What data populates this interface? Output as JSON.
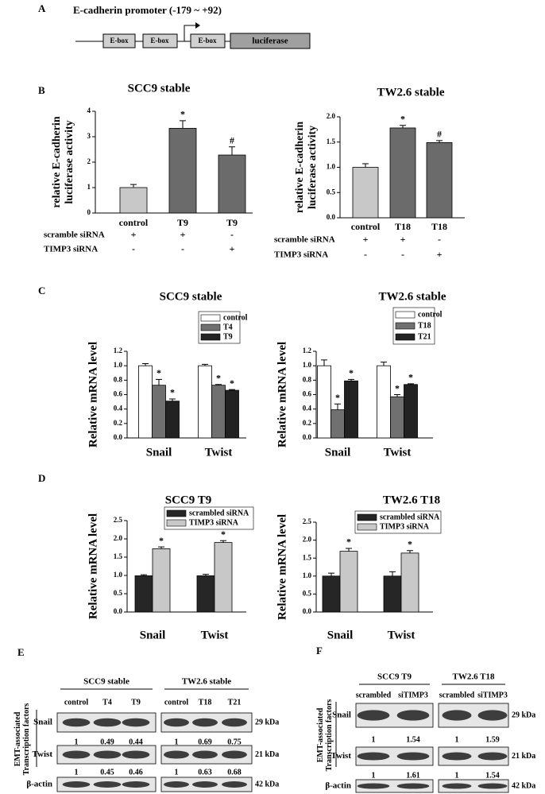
{
  "panel_labels": [
    "A",
    "B",
    "C",
    "D",
    "E",
    "F"
  ],
  "diagram": {
    "title": "E-cadherin promoter (-179 ~ +92)",
    "boxes": [
      "E-box",
      "E-box",
      "E-box"
    ],
    "reporter": "luciferase"
  },
  "chart_data": [
    {
      "type": "bar",
      "title": "SCC9 stable",
      "y_label": [
        "relative E-cadherin",
        "luciferase activity"
      ],
      "categories": [
        "control",
        "T9",
        "T9"
      ],
      "values": [
        1.0,
        3.33,
        2.28
      ],
      "errors": [
        0.12,
        0.3,
        0.32
      ],
      "colors": [
        "#c8c8c8",
        "#6b6b6b",
        "#6b6b6b"
      ],
      "annotations": [
        null,
        "*",
        "#"
      ],
      "conditions": [
        {
          "name": "scramble siRNA",
          "values": [
            "+",
            "+",
            "-"
          ]
        },
        {
          "name": "TIMP3 siRNA",
          "values": [
            "-",
            "-",
            "+"
          ]
        }
      ],
      "ylim": [
        0,
        4
      ],
      "yticks": [
        0,
        1,
        2,
        3,
        4
      ]
    },
    {
      "type": "bar",
      "title": "TW2.6 stable",
      "y_label": [
        "relative E-cadherin",
        "luciferase activity"
      ],
      "categories": [
        "control",
        "T18",
        "T18"
      ],
      "values": [
        1.0,
        1.78,
        1.49
      ],
      "errors": [
        0.07,
        0.05,
        0.04
      ],
      "colors": [
        "#c8c8c8",
        "#6b6b6b",
        "#6b6b6b"
      ],
      "annotations": [
        null,
        "*",
        "#"
      ],
      "conditions": [
        {
          "name": "scramble siRNA",
          "values": [
            "+",
            "+",
            "-"
          ]
        },
        {
          "name": "TIMP3 siRNA",
          "values": [
            "-",
            "-",
            "+"
          ]
        }
      ],
      "ylim": [
        0,
        2
      ],
      "yticks": [
        {
          "value": 0,
          "label": "0.0"
        },
        0.5,
        {
          "value": 1,
          "label": "1.0"
        },
        1.5,
        {
          "value": 2,
          "label": "2.0"
        }
      ]
    },
    {
      "type": "bar",
      "title": "SCC9 stable",
      "y_label": "Relative mRNA level",
      "categories": [
        "Snail",
        "Twist"
      ],
      "legend": "upper right",
      "series": [
        {
          "name": "control",
          "color": "#ffffff",
          "values": [
            1.0,
            1.0
          ],
          "errors": [
            0.03,
            0.02
          ]
        },
        {
          "name": "T4",
          "color": "#707070",
          "values": [
            0.73,
            0.73
          ],
          "errors": [
            0.08,
            0.01
          ],
          "annotations": [
            "*",
            "*"
          ]
        },
        {
          "name": "T9",
          "color": "#222222",
          "values": [
            0.51,
            0.66
          ],
          "errors": [
            0.03,
            0.01
          ],
          "annotations": [
            "*",
            "*"
          ]
        }
      ],
      "ylim": [
        0,
        1.2
      ],
      "yticks": [
        {
          "value": 0,
          "label": "0.0"
        },
        0.2,
        0.4,
        0.6,
        0.8,
        {
          "value": 1,
          "label": "1.0"
        },
        1.2
      ]
    },
    {
      "type": "bar",
      "title": "TW2.6 stable",
      "y_label": "Relative mRNA level",
      "categories": [
        "Snail",
        "Twist"
      ],
      "legend": "upper right",
      "series": [
        {
          "name": "control",
          "color": "#ffffff",
          "values": [
            1.0,
            1.0
          ],
          "errors": [
            0.08,
            0.05
          ]
        },
        {
          "name": "T18",
          "color": "#707070",
          "values": [
            0.39,
            0.57
          ],
          "errors": [
            0.08,
            0.03
          ],
          "annotations": [
            "*",
            "*"
          ]
        },
        {
          "name": "T21",
          "color": "#222222",
          "values": [
            0.79,
            0.74
          ],
          "errors": [
            0.02,
            0.01
          ],
          "annotations": [
            "*",
            "*"
          ]
        }
      ],
      "ylim": [
        0,
        1.2
      ],
      "yticks": [
        {
          "value": 0,
          "label": "0.0"
        },
        0.2,
        0.4,
        0.6,
        0.8,
        {
          "value": 1,
          "label": "1.0"
        },
        1.2
      ]
    },
    {
      "type": "bar",
      "title": "SCC9 T9",
      "y_label": "Relative  mRNA level",
      "categories": [
        "Snail",
        "Twist"
      ],
      "legend": "upper right",
      "series": [
        {
          "name": "scrambled siRNA",
          "color": "#262626",
          "values": [
            0.99,
            0.99
          ],
          "errors": [
            0.03,
            0.04
          ]
        },
        {
          "name": "TIMP3 siRNA",
          "color": "#c8c8c8",
          "values": [
            1.73,
            1.9
          ],
          "errors": [
            0.05,
            0.05
          ],
          "annotations": [
            "*",
            "*"
          ]
        }
      ],
      "ylim": [
        0,
        2.5
      ],
      "yticks": [
        {
          "value": 0,
          "label": "0.0"
        },
        0.5,
        {
          "value": 1,
          "label": "1.0"
        },
        1.5,
        {
          "value": 2,
          "label": "2.0"
        },
        2.5
      ]
    },
    {
      "type": "bar",
      "title": "TW2.6 T18",
      "y_label": "Relative mRNA level",
      "categories": [
        "Snail",
        "Twist"
      ],
      "legend": "upper right",
      "series": [
        {
          "name": "scrambled siRNA",
          "color": "#262626",
          "values": [
            1.0,
            1.0
          ],
          "errors": [
            0.08,
            0.12
          ]
        },
        {
          "name": "TIMP3 siRNA",
          "color": "#c8c8c8",
          "values": [
            1.69,
            1.64
          ],
          "errors": [
            0.08,
            0.07
          ],
          "annotations": [
            "*",
            "*"
          ]
        }
      ],
      "ylim": [
        0,
        2.5
      ],
      "yticks": [
        {
          "value": 0,
          "label": "0.0"
        },
        0.5,
        {
          "value": 1,
          "label": "1.0"
        },
        1.5,
        {
          "value": 2,
          "label": "2.0"
        },
        2.5
      ]
    }
  ],
  "blots": [
    {
      "side_label": [
        "EMT-associated",
        "Transcription factors"
      ],
      "groups": [
        {
          "name": "SCC9 stable",
          "lanes": [
            "control",
            "T4",
            "T9"
          ]
        },
        {
          "name": "TW2.6 stable",
          "lanes": [
            "control",
            "T18",
            "T21"
          ]
        }
      ],
      "rows": [
        {
          "name": "Snail",
          "size": "29 kDa",
          "values": [
            [
              1,
              0.49,
              0.44
            ],
            [
              1,
              0.69,
              0.75
            ]
          ]
        },
        {
          "name": "Twist",
          "size": "21 kDa",
          "values": [
            [
              1,
              0.45,
              0.46
            ],
            [
              1,
              0.63,
              0.68
            ]
          ]
        },
        {
          "name": "β-actin",
          "size": "42 kDa"
        }
      ]
    },
    {
      "side_label": [
        "EMT-associated",
        "Transcription factors"
      ],
      "groups": [
        {
          "name": "SCC9 T9",
          "lanes": [
            "scrambled",
            "siTIMP3"
          ]
        },
        {
          "name": "TW2.6 T18",
          "lanes": [
            "scrambled",
            "siTIMP3"
          ]
        }
      ],
      "rows": [
        {
          "name": "Snail",
          "size": "29 kDa",
          "values": [
            [
              1,
              1.54
            ],
            [
              1,
              1.59
            ]
          ]
        },
        {
          "name": "Twist",
          "size": "21 kDa",
          "values": [
            [
              1,
              1.61
            ],
            [
              1,
              1.54
            ]
          ]
        },
        {
          "name": "β-actin",
          "size": "42 kDa"
        }
      ]
    }
  ]
}
